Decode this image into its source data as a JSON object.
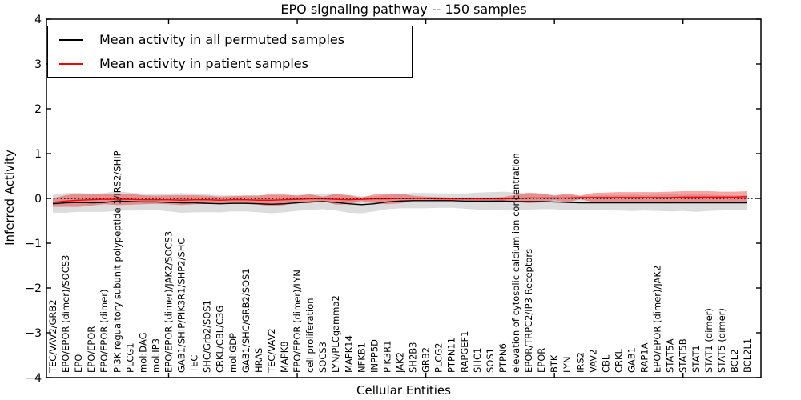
{
  "title": "EPO signaling pathway -- 150 samples",
  "axes": {
    "x_label": "Cellular Entities",
    "y_label": "Inferred Activity"
  },
  "legend": {
    "position": "upper left",
    "items": [
      {
        "label": "Mean activity in all permuted samples",
        "color": "#000000"
      },
      {
        "label": "Mean activity in patient samples",
        "color": "#ff0000"
      }
    ]
  },
  "colors": {
    "permuted_line": "#000000",
    "patient_line": "#ff0000",
    "permuted_band": "rgba(128,128,128,0.28)",
    "patient_band": "rgba(232,28,28,0.40)",
    "zero_line": "#000000",
    "frame": "#000000",
    "background": "#ffffff"
  },
  "chart_data": {
    "type": "line",
    "title": "EPO signaling pathway -- 150 samples",
    "xlabel": "Cellular Entities",
    "ylabel": "Inferred Activity",
    "ylim": [
      -4,
      4
    ],
    "y_ticks": [
      4,
      3,
      2,
      1,
      0,
      -1,
      -2,
      -3,
      -4
    ],
    "x_numeric_ticks": [
      10,
      20,
      30,
      40,
      50
    ],
    "grid": false,
    "zero_line": true,
    "legend_position": "upper left",
    "categories": [
      "TEC/VAV2/GRB2",
      "EPO/EPOR (dimer)/SOCS3",
      "EPO",
      "EPO/EPOR",
      "EPO/EPOR (dimer)",
      "PI3K regualtory subunit polypeptide 1/IRS2/SHIP",
      "PLCG1",
      "mol:DAG",
      "mol:IP3",
      "EPO/EPOR (dimer)/JAK2/SOCS3",
      "GAB1/SHIP/PIK3R1/SHP2/SHC",
      "TEC",
      "SHC/Grb2/SOS1",
      "CRKL/CBL/C3G",
      "mol:GDP",
      "GAB1/SHC/GRB2/SOS1",
      "HRAS",
      "TEC/VAV2",
      "MAPK8",
      "EPO/EPOR (dimer)/LYN",
      "cell proliferation",
      "SOCS3",
      "LYN/PLCgamma2",
      "MAPK14",
      "NFKB1",
      "INPP5D",
      "PIK3R1",
      "JAK2",
      "SH2B3",
      "GRB2",
      "PLCG2",
      "PTPN11",
      "RAPGEF1",
      "SHC1",
      "SOS1",
      "PTPN6",
      "elevation of cytosolic calcium ion concentration",
      "EPOR/TRPC2/IP3 Receptors",
      "EPOR",
      "BTK",
      "LYN",
      "IRS2",
      "VAV2",
      "CBL",
      "CRKL",
      "GAB1",
      "RAP1A",
      "EPO/EPOR (dimer)/JAK2",
      "STAT5A",
      "STAT5B",
      "STAT1",
      "STAT1 (dimer)",
      "STAT5 (dimer)",
      "BCL2",
      "BCL2L1"
    ],
    "series": [
      {
        "name": "Mean activity in all permuted samples",
        "role": "permuted",
        "color": "#000000",
        "band_color": "rgba(128,128,128,0.28)",
        "mean": [
          -0.12,
          -0.1,
          -0.09,
          -0.1,
          -0.09,
          -0.06,
          -0.07,
          -0.08,
          -0.08,
          -0.09,
          -0.1,
          -0.1,
          -0.11,
          -0.12,
          -0.11,
          -0.11,
          -0.12,
          -0.13,
          -0.12,
          -0.1,
          -0.08,
          -0.07,
          -0.09,
          -0.12,
          -0.14,
          -0.12,
          -0.08,
          -0.06,
          -0.05,
          -0.05,
          -0.05,
          -0.05,
          -0.06,
          -0.06,
          -0.06,
          -0.06,
          -0.07,
          -0.07,
          -0.07,
          -0.08,
          -0.09,
          -0.1,
          -0.1,
          -0.1,
          -0.1,
          -0.1,
          -0.1,
          -0.1,
          -0.1,
          -0.1,
          -0.1,
          -0.1,
          -0.1,
          -0.1,
          -0.1
        ],
        "std": [
          0.2,
          0.22,
          0.21,
          0.2,
          0.21,
          0.22,
          0.2,
          0.19,
          0.18,
          0.2,
          0.22,
          0.21,
          0.2,
          0.19,
          0.18,
          0.18,
          0.19,
          0.2,
          0.19,
          0.18,
          0.18,
          0.17,
          0.18,
          0.2,
          0.19,
          0.17,
          0.16,
          0.16,
          0.17,
          0.17,
          0.16,
          0.16,
          0.17,
          0.19,
          0.2,
          0.21,
          0.2,
          0.18,
          0.17,
          0.16,
          0.17,
          0.16,
          0.16,
          0.17,
          0.17,
          0.18,
          0.17,
          0.18,
          0.19,
          0.18,
          0.2,
          0.18,
          0.17,
          0.16,
          0.17
        ]
      },
      {
        "name": "Mean activity in patient samples",
        "role": "patient",
        "color": "#ff0000",
        "band_color": "rgba(232,28,28,0.40)",
        "mean": [
          -0.09,
          -0.06,
          -0.04,
          -0.03,
          -0.02,
          -0.02,
          -0.02,
          -0.03,
          -0.03,
          -0.03,
          -0.04,
          -0.03,
          -0.03,
          -0.04,
          -0.03,
          -0.03,
          -0.04,
          -0.04,
          -0.03,
          -0.02,
          -0.01,
          -0.01,
          -0.02,
          -0.03,
          -0.02,
          -0.01,
          -0.01,
          0.0,
          0.0,
          0.0,
          -0.01,
          -0.01,
          -0.01,
          -0.01,
          -0.01,
          -0.01,
          0.0,
          0.01,
          0.01,
          0.01,
          0.01,
          0.02,
          0.02,
          0.02,
          0.02,
          0.02,
          0.02,
          0.02,
          0.02,
          0.03,
          0.03,
          0.03,
          0.03,
          0.03,
          0.04
        ],
        "std": [
          0.1,
          0.13,
          0.15,
          0.13,
          0.11,
          0.13,
          0.12,
          0.1,
          0.09,
          0.1,
          0.11,
          0.1,
          0.09,
          0.08,
          0.08,
          0.09,
          0.1,
          0.14,
          0.12,
          0.08,
          0.1,
          0.05,
          0.12,
          0.1,
          0.04,
          0.1,
          0.12,
          0.11,
          0.06,
          0.04,
          0.04,
          0.03,
          0.03,
          0.03,
          0.03,
          0.04,
          0.08,
          0.12,
          0.1,
          0.05,
          0.1,
          0.04,
          0.1,
          0.11,
          0.12,
          0.12,
          0.12,
          0.12,
          0.13,
          0.13,
          0.13,
          0.13,
          0.12,
          0.12,
          0.12
        ]
      }
    ]
  }
}
